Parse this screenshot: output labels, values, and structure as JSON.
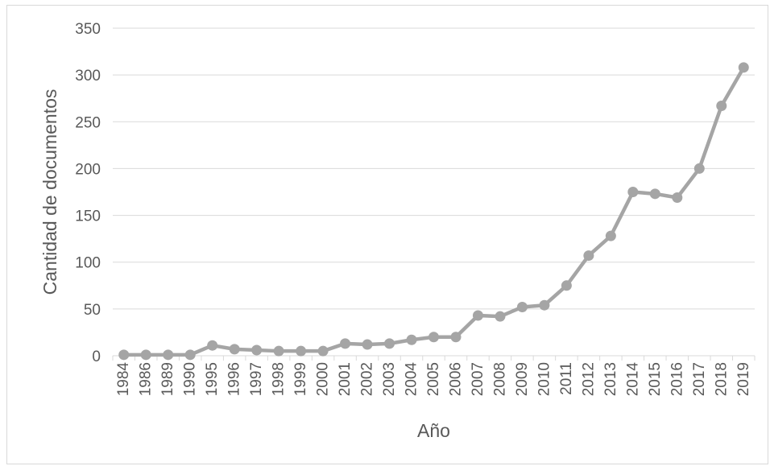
{
  "chart_data": {
    "type": "line",
    "title": "",
    "xlabel": "Año",
    "ylabel": "Cantidad de documentos",
    "ylim": [
      0,
      350
    ],
    "yticks": [
      0,
      50,
      100,
      150,
      200,
      250,
      300,
      350
    ],
    "grid": true,
    "legend": "none",
    "categories": [
      "1984",
      "1986",
      "1989",
      "1990",
      "1995",
      "1996",
      "1997",
      "1998",
      "1999",
      "2000",
      "2001",
      "2002",
      "2003",
      "2004",
      "2005",
      "2006",
      "2007",
      "2008",
      "2009",
      "2010",
      "2011",
      "2012",
      "2013",
      "2014",
      "2015",
      "2016",
      "2017",
      "2018",
      "2019"
    ],
    "series": [
      {
        "values": [
          1,
          1,
          1,
          1,
          11,
          7,
          6,
          5,
          5,
          5,
          13,
          12,
          13,
          17,
          20,
          20,
          43,
          42,
          52,
          54,
          75,
          107,
          128,
          175,
          173,
          169,
          200,
          267,
          308
        ]
      }
    ],
    "colors": {
      "series": "#a5a5a5",
      "grid": "#d9d9d9",
      "text": "#595959"
    }
  }
}
